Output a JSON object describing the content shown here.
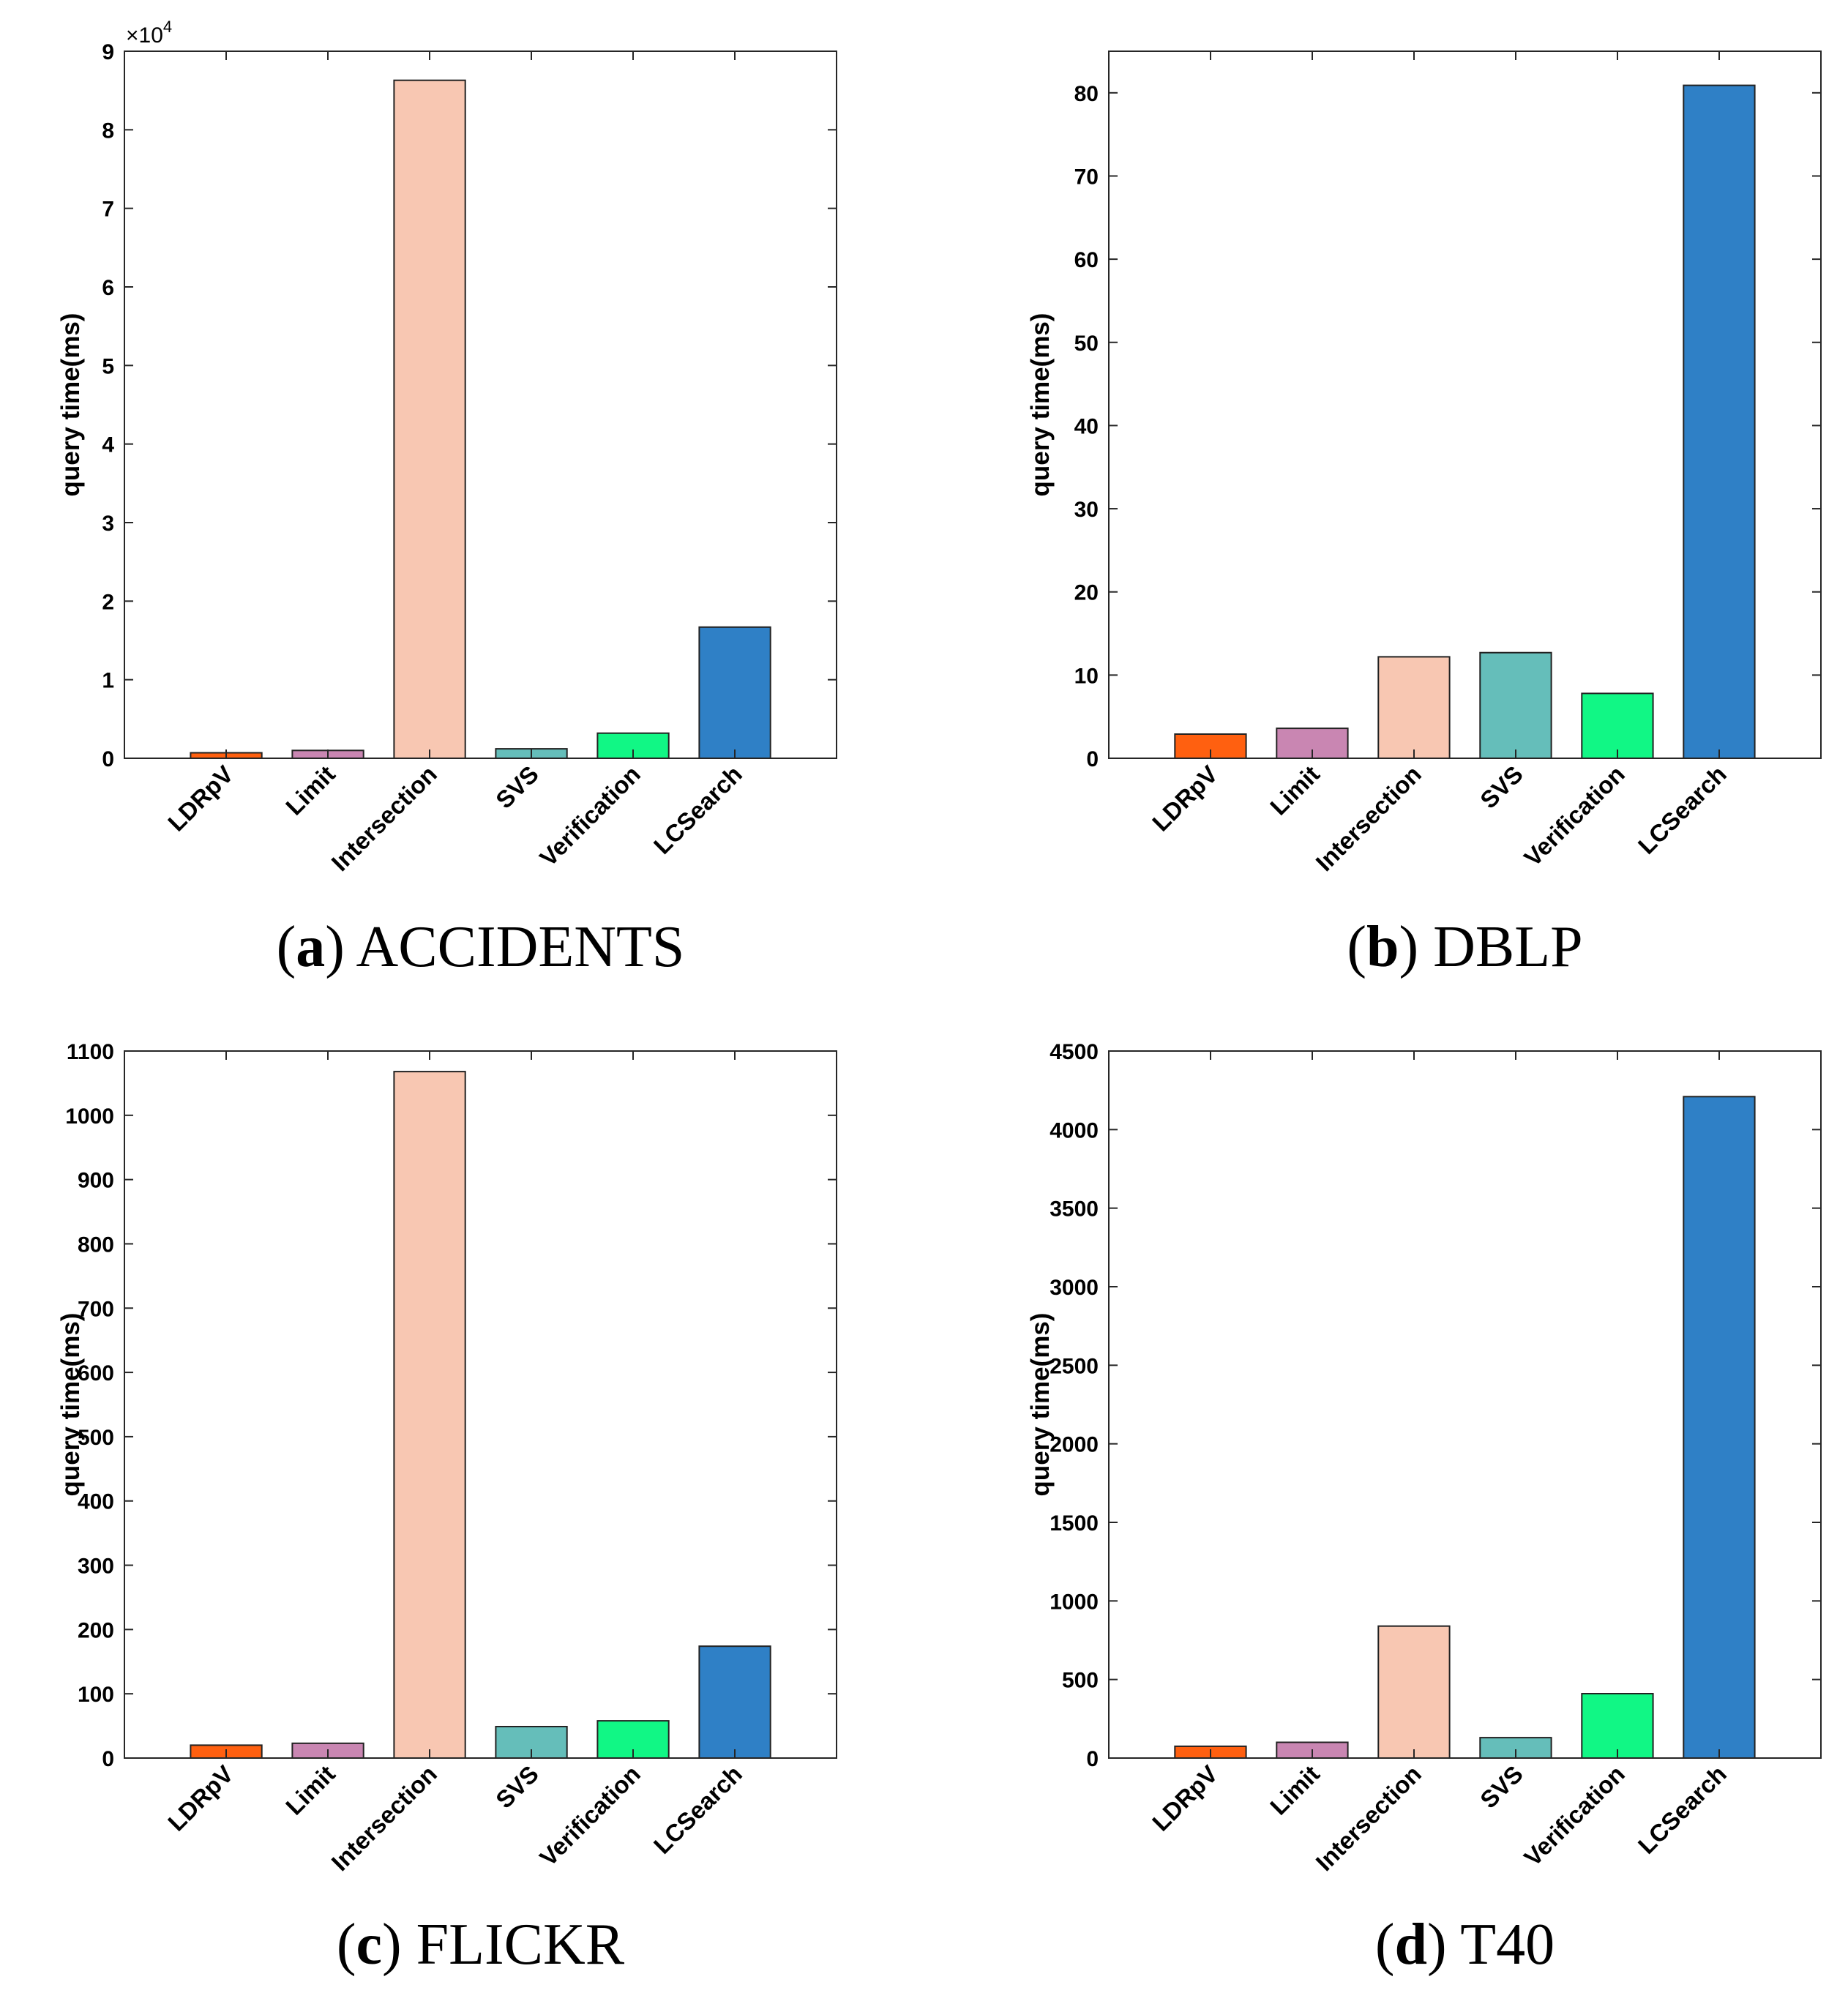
{
  "figure": {
    "shared": {
      "categories": [
        "LDRpV",
        "Limit",
        "Intersection",
        "SVS",
        "Verification",
        "LCSearch"
      ],
      "bar_colors": [
        "#FF6010",
        "#C986B2",
        "#F8C7B2",
        "#65BEBA",
        "#11F785",
        "#2F80C6"
      ]
    }
  },
  "chart_data": [
    {
      "type": "bar",
      "panel": "a",
      "title": "ACCIDENTS",
      "caption_letter": "a",
      "ylabel": "query time(ms)",
      "categories": [
        "LDRpV",
        "Limit",
        "Intersection",
        "SVS",
        "Verification",
        "LCSearch"
      ],
      "values": [
        700,
        1000,
        86300,
        1200,
        3200,
        16700
      ],
      "ylim": [
        0,
        90000
      ],
      "yticks": [
        0,
        10000,
        20000,
        30000,
        40000,
        50000,
        60000,
        70000,
        80000,
        90000
      ],
      "ytick_labels": [
        "0",
        "1",
        "2",
        "3",
        "4",
        "5",
        "6",
        "7",
        "8",
        "9"
      ],
      "multiplier_label": {
        "prefix": "×10",
        "exponent": "4"
      }
    },
    {
      "type": "bar",
      "panel": "b",
      "title": "DBLP",
      "caption_letter": "b",
      "ylabel": "query time(ms)",
      "categories": [
        "LDRpV",
        "Limit",
        "Intersection",
        "SVS",
        "Verification",
        "LCSearch"
      ],
      "values": [
        2.9,
        3.6,
        12.2,
        12.7,
        7.8,
        80.9
      ],
      "ylim": [
        0,
        85
      ],
      "yticks": [
        0,
        10,
        20,
        30,
        40,
        50,
        60,
        70,
        80
      ],
      "ytick_labels": [
        "0",
        "10",
        "20",
        "30",
        "40",
        "50",
        "60",
        "70",
        "80"
      ]
    },
    {
      "type": "bar",
      "panel": "c",
      "title": "FLICKR",
      "caption_letter": "c",
      "ylabel": "query time(ms)",
      "categories": [
        "LDRpV",
        "Limit",
        "Intersection",
        "SVS",
        "Verification",
        "LCSearch"
      ],
      "values": [
        20,
        23,
        1068,
        49,
        58,
        174
      ],
      "ylim": [
        0,
        1100
      ],
      "yticks": [
        0,
        100,
        200,
        300,
        400,
        500,
        600,
        700,
        800,
        900,
        1000,
        1100
      ],
      "ytick_labels": [
        "0",
        "100",
        "200",
        "300",
        "400",
        "500",
        "600",
        "700",
        "800",
        "900",
        "1000",
        "1100"
      ]
    },
    {
      "type": "bar",
      "panel": "d",
      "title": "T40",
      "caption_letter": "d",
      "ylabel": "query time(ms)",
      "categories": [
        "LDRpV",
        "Limit",
        "Intersection",
        "SVS",
        "Verification",
        "LCSearch"
      ],
      "values": [
        75,
        100,
        840,
        130,
        410,
        4210
      ],
      "ylim": [
        0,
        4500
      ],
      "yticks": [
        0,
        500,
        1000,
        1500,
        2000,
        2500,
        3000,
        3500,
        4000,
        4500
      ],
      "ytick_labels": [
        "0",
        "500",
        "1000",
        "1500",
        "2000",
        "2500",
        "3000",
        "3500",
        "4000",
        "4500"
      ]
    }
  ]
}
